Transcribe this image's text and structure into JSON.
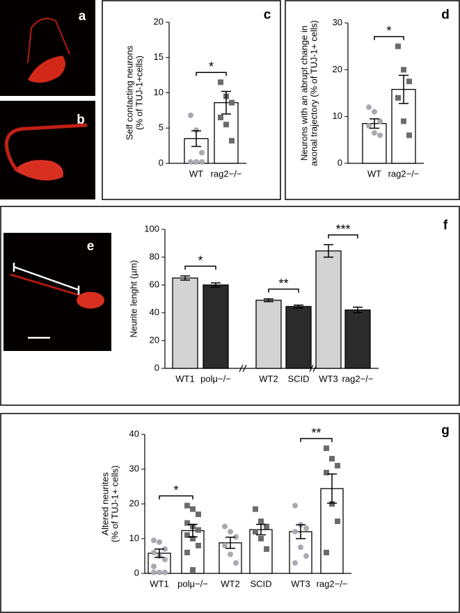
{
  "images": [
    {
      "label": "a"
    },
    {
      "label": "b"
    },
    {
      "label": "e"
    }
  ],
  "chart_data": [
    {
      "type": "bar",
      "panel": "c",
      "ylabel": [
        "Self contacting neurons",
        "(% of TUJ-1+cells)"
      ],
      "categories": [
        "WT",
        "rag2−/−"
      ],
      "values": [
        3.5,
        8.6
      ],
      "errors": [
        1.1,
        1.6
      ],
      "colors": [
        "#ffffff",
        "#ffffff"
      ],
      "point_colors": [
        "#a9a9b2",
        "#6b6b6b"
      ],
      "points": [
        [
          6.8,
          4.7,
          1.5,
          0.2,
          0.2,
          0.2
        ],
        [
          11.5,
          9.5,
          8.6,
          6.5,
          5.5,
          3.2
        ]
      ],
      "annotations": [
        {
          "text": "*",
          "between": [
            "WT",
            "rag2−/−"
          ]
        }
      ],
      "ylim": [
        0,
        20
      ],
      "yticks": [
        0,
        5,
        10,
        15,
        20
      ]
    },
    {
      "type": "bar",
      "panel": "d",
      "ylabel": [
        "Neurons with an abrupt change in",
        "axonal trajectory (% of TUJ-1+ cells)"
      ],
      "categories": [
        "WT",
        "rag2−/−"
      ],
      "values": [
        8.5,
        15.8
      ],
      "errors": [
        1.0,
        3.0
      ],
      "colors": [
        "#ffffff",
        "#ffffff"
      ],
      "point_colors": [
        "#a9a9b2",
        "#6b6b6b"
      ],
      "points": [
        [
          12,
          11,
          9,
          8,
          6.5,
          6
        ],
        [
          25,
          20,
          17.5,
          14,
          9,
          6
        ]
      ],
      "annotations": [
        {
          "text": "*",
          "between": [
            "WT",
            "rag2−/−"
          ]
        }
      ],
      "ylim": [
        0,
        30
      ],
      "yticks": [
        0,
        10,
        20,
        30
      ]
    },
    {
      "type": "bar",
      "panel": "f",
      "ylabel": [
        "Neurite lenght (µm)"
      ],
      "categories": [
        "WT1",
        "polμ−/−",
        "WT2",
        "SCID",
        "WT3",
        "rag2−/−"
      ],
      "values": [
        65,
        60,
        49,
        44.5,
        84.5,
        42
      ],
      "errors": [
        1.5,
        1.5,
        1,
        1,
        4.5,
        2
      ],
      "colors": [
        "#d3d3d3",
        "#2b2b2b",
        "#d3d3d3",
        "#2b2b2b",
        "#d3d3d3",
        "#2b2b2b"
      ],
      "annotations": [
        {
          "text": "*",
          "between": [
            "WT1",
            "polμ−/−"
          ]
        },
        {
          "text": "**",
          "between": [
            "WT2",
            "SCID"
          ]
        },
        {
          "text": "***",
          "between": [
            "WT3",
            "rag2−/−"
          ]
        }
      ],
      "ylim": [
        0,
        100
      ],
      "yticks": [
        0,
        20,
        40,
        60,
        80,
        100
      ]
    },
    {
      "type": "bar",
      "panel": "g",
      "ylabel": [
        "Altered neurites",
        "(% of TUJ-1+ cells)"
      ],
      "categories": [
        "WT1",
        "polμ−/−",
        "WT2",
        "SCID",
        "WT3",
        "rag2−/−"
      ],
      "values": [
        5.8,
        12.3,
        8.8,
        12.6,
        12,
        24.4
      ],
      "errors": [
        1.2,
        1.8,
        1.6,
        1.5,
        2,
        4.2
      ],
      "colors": [
        "#ffffff",
        "#ffffff",
        "#ffffff",
        "#ffffff",
        "#ffffff",
        "#ffffff"
      ],
      "point_colors": [
        "#a9a9b2",
        "#6b6b6b",
        "#a9a9b2",
        "#6b6b6b",
        "#a9a9b2",
        "#6b6b6b"
      ],
      "points": [
        [
          9.5,
          9,
          7,
          6,
          5,
          4,
          2,
          0.3,
          0.3,
          0.3
        ],
        [
          19.5,
          18.5,
          17,
          14.5,
          13.5,
          12.5,
          11,
          10,
          8,
          6,
          1
        ],
        [
          13.5,
          12,
          10.5,
          8,
          5.5,
          3
        ],
        [
          18.5,
          15,
          13.5,
          12,
          10,
          7
        ],
        [
          19.5,
          14,
          13,
          12,
          7.5,
          5,
          3
        ],
        [
          36,
          33,
          31,
          29,
          20,
          15,
          6
        ]
      ],
      "annotations": [
        {
          "text": "*",
          "between": [
            "WT1",
            "polμ−/−"
          ]
        },
        {
          "text": "**",
          "between": [
            "WT3",
            "rag2−/−"
          ]
        }
      ],
      "ylim": [
        0,
        40
      ],
      "yticks": [
        0,
        10,
        20,
        30,
        40
      ]
    }
  ]
}
